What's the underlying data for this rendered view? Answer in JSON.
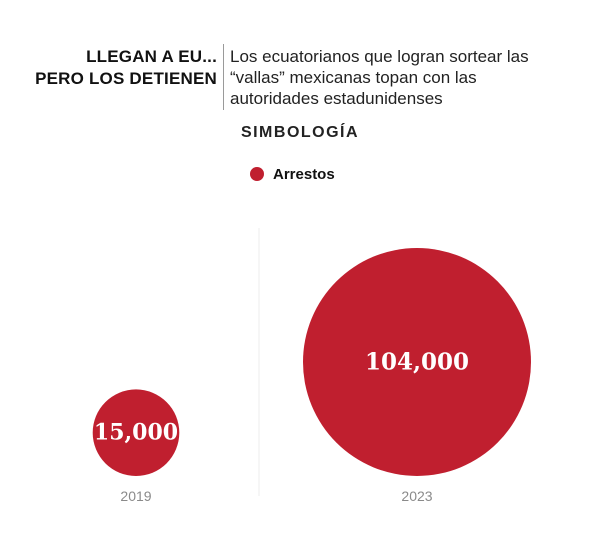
{
  "header": {
    "kicker_line1": "LLEGAN A EU...",
    "kicker_line2": "PERO LOS DETIENEN",
    "dek": "Los ecuatorianos que logran sortear las “vallas” mexicanas topan con las autoridades estadunidenses"
  },
  "legend": {
    "title": "SIMBOLOGÍA",
    "series_label": "Arrestos",
    "series_color": "#c01f2f"
  },
  "chart_data": {
    "type": "bubble",
    "title": "LLEGAN A EU... PERO LOS DETIENEN",
    "subtitle": "Los ecuatorianos que logran sortear las “vallas” mexicanas topan con las autoridades estadunidenses",
    "series": [
      {
        "name": "Arrestos",
        "color": "#c01f2f",
        "values": [
          15000,
          104000
        ]
      }
    ],
    "categories": [
      "2019",
      "2023"
    ],
    "data_labels": [
      "15,000",
      "104,000"
    ],
    "size_encoding": "area",
    "legend_position": "top-center",
    "grid": false
  }
}
